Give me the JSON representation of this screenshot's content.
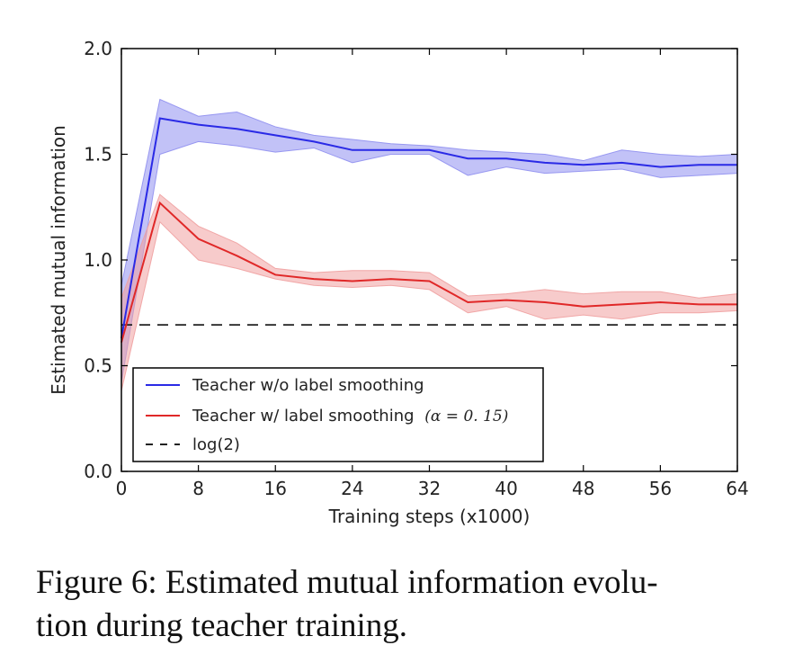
{
  "caption": {
    "line1": "Figure 6: Estimated mutual information evolu-",
    "line2": "tion during teacher training."
  },
  "chart_data": {
    "type": "line",
    "xlabel": "Training steps (x1000)",
    "ylabel": "Estimated mutual information",
    "xlim": [
      0,
      64
    ],
    "ylim": [
      0,
      2.0
    ],
    "xticks": [
      0,
      8,
      16,
      24,
      32,
      40,
      48,
      56,
      64
    ],
    "xtick_labels": [
      "0",
      "8",
      "16",
      "24",
      "32",
      "40",
      "48",
      "56",
      "64"
    ],
    "yticks": [
      0,
      0.5,
      1.0,
      1.5,
      2.0
    ],
    "ytick_labels": [
      "0.0",
      "0.5",
      "1.0",
      "1.5",
      "2.0"
    ],
    "grid": false,
    "legend_position": "bottom-left",
    "x": [
      0,
      4,
      8,
      12,
      16,
      20,
      24,
      28,
      32,
      36,
      40,
      44,
      48,
      52,
      56,
      60,
      64
    ],
    "series": [
      {
        "name": "Teacher w/o label smoothing",
        "color": "#2a2ae6",
        "band_color": "#8f8ff0",
        "mean": [
          0.63,
          1.67,
          1.64,
          1.62,
          1.59,
          1.56,
          1.52,
          1.52,
          1.52,
          1.48,
          1.48,
          1.46,
          1.45,
          1.46,
          1.44,
          1.45,
          1.45
        ],
        "upper": [
          0.88,
          1.76,
          1.68,
          1.7,
          1.63,
          1.59,
          1.57,
          1.55,
          1.54,
          1.52,
          1.51,
          1.5,
          1.47,
          1.52,
          1.5,
          1.49,
          1.5
        ],
        "lower": [
          0.42,
          1.5,
          1.56,
          1.54,
          1.51,
          1.53,
          1.46,
          1.5,
          1.5,
          1.4,
          1.44,
          1.41,
          1.42,
          1.43,
          1.39,
          1.4,
          1.41
        ]
      },
      {
        "name": "Teacher w/ label smoothing",
        "name_math": "(α = 0. 15)",
        "color": "#e02828",
        "band_color": "#f0a0a0",
        "mean": [
          0.61,
          1.27,
          1.1,
          1.02,
          0.93,
          0.91,
          0.9,
          0.91,
          0.9,
          0.8,
          0.81,
          0.8,
          0.78,
          0.79,
          0.8,
          0.79,
          0.79
        ],
        "upper": [
          0.82,
          1.31,
          1.16,
          1.08,
          0.96,
          0.94,
          0.95,
          0.95,
          0.94,
          0.83,
          0.84,
          0.86,
          0.84,
          0.85,
          0.85,
          0.82,
          0.84
        ],
        "lower": [
          0.38,
          1.18,
          1.0,
          0.96,
          0.91,
          0.88,
          0.87,
          0.88,
          0.86,
          0.75,
          0.78,
          0.72,
          0.74,
          0.72,
          0.75,
          0.75,
          0.76
        ]
      }
    ],
    "reference_line": {
      "name": "log(2)",
      "value": 0.6931,
      "color": "#222222",
      "style": "dashed"
    }
  }
}
